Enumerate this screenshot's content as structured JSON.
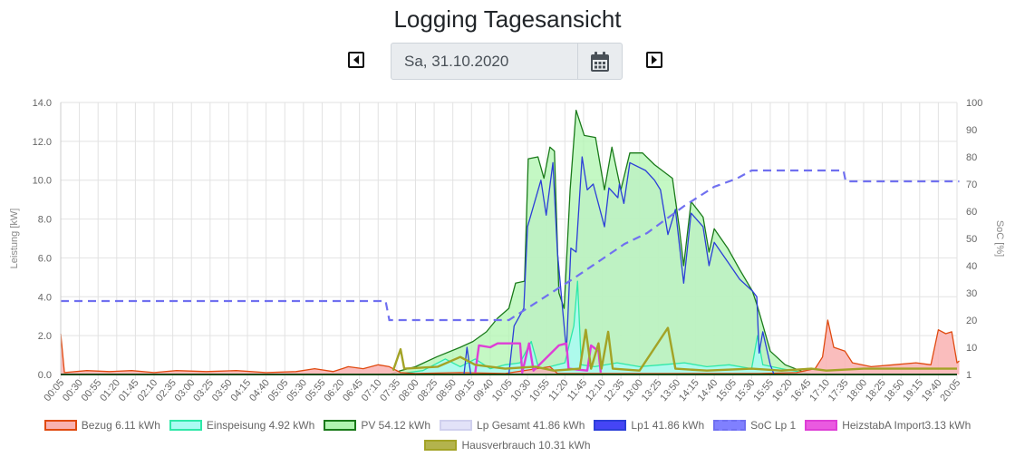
{
  "header": {
    "title": "Logging Tagesansicht",
    "date": "Sa, 31.10.2020",
    "prev_icon": "caret-left-icon",
    "next_icon": "caret-right-icon",
    "calendar_icon": "calendar-icon"
  },
  "chart_data": {
    "type": "line",
    "y_left": {
      "label": "Leistung [kW]",
      "min": 0,
      "max": 14,
      "ticks": [
        "14.0",
        "12.0",
        "10.0",
        "8.0",
        "6.0",
        "4.0",
        "2.0",
        "0.0"
      ]
    },
    "y_right": {
      "label": "SoC [%]",
      "min": 0,
      "max": 100,
      "ticks": [
        "100",
        "90",
        "80",
        "70",
        "60",
        "50",
        "40",
        "30",
        "20",
        "10",
        "1"
      ]
    },
    "x_ticks": [
      "00:05",
      "00:30",
      "00:55",
      "01:20",
      "01:45",
      "02:10",
      "02:35",
      "03:00",
      "03:25",
      "03:50",
      "04:15",
      "04:40",
      "05:05",
      "05:30",
      "05:55",
      "06:20",
      "06:45",
      "07:10",
      "07:35",
      "08:00",
      "08:25",
      "08:50",
      "09:15",
      "09:40",
      "10:05",
      "10:30",
      "10:55",
      "11:20",
      "11:45",
      "12:10",
      "12:35",
      "13:00",
      "13:25",
      "13:50",
      "14:15",
      "14:40",
      "15:05",
      "15:30",
      "15:55",
      "16:20",
      "16:45",
      "17:10",
      "17:35",
      "18:00",
      "18:25",
      "18:50",
      "19:15",
      "19:40",
      "20:05"
    ],
    "grid": true,
    "legend_position": "bottom",
    "series": [
      {
        "name": "Bezug",
        "legend": "Bezug 6.11 kWh",
        "fill": "#f9b1b1",
        "stroke": "#e04a10",
        "axis": "left",
        "kind": "area",
        "points": [
          [
            "00:05",
            2.1
          ],
          [
            "00:10",
            0.1
          ],
          [
            "00:40",
            0.2
          ],
          [
            "01:10",
            0.15
          ],
          [
            "01:40",
            0.2
          ],
          [
            "02:10",
            0.1
          ],
          [
            "02:40",
            0.2
          ],
          [
            "03:20",
            0.15
          ],
          [
            "04:00",
            0.2
          ],
          [
            "04:40",
            0.1
          ],
          [
            "05:20",
            0.15
          ],
          [
            "05:45",
            0.3
          ],
          [
            "06:10",
            0.15
          ],
          [
            "06:30",
            0.4
          ],
          [
            "06:50",
            0.3
          ],
          [
            "07:10",
            0.5
          ],
          [
            "07:25",
            0.4
          ],
          [
            "07:40",
            0.1
          ],
          [
            "08:00",
            0.05
          ],
          [
            "09:00",
            0.1
          ],
          [
            "10:00",
            0.05
          ],
          [
            "11:00",
            0.4
          ],
          [
            "11:10",
            0.05
          ],
          [
            "15:40",
            0.05
          ],
          [
            "16:30",
            0.1
          ],
          [
            "16:55",
            0.3
          ],
          [
            "17:05",
            0.9
          ],
          [
            "17:12",
            2.8
          ],
          [
            "17:20",
            1.4
          ],
          [
            "17:35",
            1.2
          ],
          [
            "17:45",
            0.6
          ],
          [
            "18:10",
            0.4
          ],
          [
            "18:40",
            0.5
          ],
          [
            "19:10",
            0.6
          ],
          [
            "19:30",
            0.5
          ],
          [
            "19:40",
            2.3
          ],
          [
            "19:50",
            2.1
          ],
          [
            "19:58",
            2.2
          ],
          [
            "20:05",
            0.6
          ],
          [
            "20:08",
            0.7
          ]
        ]
      },
      {
        "name": "Einspeisung",
        "legend": "Einspeisung 4.92 kWh",
        "fill": "#aafbf3",
        "stroke": "#2ee8a8",
        "axis": "left",
        "kind": "area",
        "points": [
          [
            "07:30",
            0
          ],
          [
            "08:10",
            0.2
          ],
          [
            "08:40",
            0.8
          ],
          [
            "09:00",
            0.4
          ],
          [
            "09:20",
            0.8
          ],
          [
            "09:40",
            0.3
          ],
          [
            "10:00",
            0.5
          ],
          [
            "10:20",
            0.6
          ],
          [
            "10:35",
            1.7
          ],
          [
            "10:45",
            0.3
          ],
          [
            "11:00",
            0.4
          ],
          [
            "11:20",
            0.6
          ],
          [
            "11:32",
            2.5
          ],
          [
            "11:37",
            4.8
          ],
          [
            "11:42",
            0.5
          ],
          [
            "12:00",
            0.4
          ],
          [
            "12:30",
            0.6
          ],
          [
            "13:00",
            0.4
          ],
          [
            "13:30",
            0.5
          ],
          [
            "14:00",
            0.6
          ],
          [
            "14:30",
            0.4
          ],
          [
            "15:00",
            0.5
          ],
          [
            "15:30",
            0.3
          ],
          [
            "15:38",
            2.0
          ],
          [
            "15:45",
            0.5
          ],
          [
            "16:10",
            0.3
          ],
          [
            "16:40",
            0.1
          ],
          [
            "16:50",
            0
          ]
        ]
      },
      {
        "name": "PV",
        "legend": "PV 54.12 kWh",
        "fill": "#b0f5b0",
        "stroke": "#1a7a1a",
        "axis": "left",
        "kind": "area",
        "points": [
          [
            "07:25",
            0
          ],
          [
            "07:40",
            0.2
          ],
          [
            "08:00",
            0.4
          ],
          [
            "08:28",
            0.9
          ],
          [
            "09:00",
            1.4
          ],
          [
            "09:17",
            1.7
          ],
          [
            "09:35",
            2.2
          ],
          [
            "09:50",
            2.9
          ],
          [
            "10:05",
            3.4
          ],
          [
            "10:14",
            4.7
          ],
          [
            "10:26",
            4.8
          ],
          [
            "10:31",
            11.1
          ],
          [
            "10:44",
            11.2
          ],
          [
            "10:52",
            10.1
          ],
          [
            "11:00",
            11.7
          ],
          [
            "11:06",
            11.5
          ],
          [
            "11:12",
            4.2
          ],
          [
            "11:19",
            3.4
          ],
          [
            "11:27",
            9.5
          ],
          [
            "11:35",
            13.6
          ],
          [
            "11:46",
            12.3
          ],
          [
            "12:01",
            12.2
          ],
          [
            "12:13",
            9.5
          ],
          [
            "12:23",
            11.7
          ],
          [
            "12:35",
            9.5
          ],
          [
            "12:47",
            11.4
          ],
          [
            "13:04",
            11.4
          ],
          [
            "13:20",
            10.8
          ],
          [
            "13:44",
            10.1
          ],
          [
            "13:53",
            7.6
          ],
          [
            "13:59",
            5.6
          ],
          [
            "14:09",
            8.9
          ],
          [
            "14:25",
            8.1
          ],
          [
            "14:33",
            6.3
          ],
          [
            "14:40",
            7.5
          ],
          [
            "14:58",
            6.5
          ],
          [
            "15:14",
            5.4
          ],
          [
            "15:31",
            4.3
          ],
          [
            "15:38",
            3.5
          ],
          [
            "15:55",
            1.2
          ],
          [
            "16:15",
            0.5
          ],
          [
            "16:35",
            0.2
          ],
          [
            "16:45",
            0
          ]
        ]
      },
      {
        "name": "Lp Gesamt",
        "legend": "Lp Gesamt 41.86 kWh",
        "fill": "#e2e2f8",
        "stroke": "#d0d0ee",
        "axis": "left",
        "kind": "area",
        "same_as": "Lp1"
      },
      {
        "name": "Lp1",
        "legend": "Lp1 41.86 kWh",
        "fill": "#4545f5",
        "stroke": "#2c3fd8",
        "axis": "left",
        "kind": "line",
        "points": [
          [
            "09:05",
            0
          ],
          [
            "09:09",
            1.4
          ],
          [
            "09:14",
            0
          ],
          [
            "10:05",
            0
          ],
          [
            "10:12",
            2.5
          ],
          [
            "10:25",
            3.4
          ],
          [
            "10:30",
            7.6
          ],
          [
            "10:48",
            10.0
          ],
          [
            "10:55",
            8.2
          ],
          [
            "11:04",
            10.9
          ],
          [
            "11:10",
            6.3
          ],
          [
            "11:22",
            1.2
          ],
          [
            "11:28",
            6.5
          ],
          [
            "11:35",
            6.3
          ],
          [
            "11:43",
            11.2
          ],
          [
            "11:50",
            9.5
          ],
          [
            "11:58",
            9.8
          ],
          [
            "12:13",
            7.6
          ],
          [
            "12:19",
            9.6
          ],
          [
            "12:31",
            9.1
          ],
          [
            "12:33",
            9.8
          ],
          [
            "12:39",
            8.8
          ],
          [
            "12:47",
            10.9
          ],
          [
            "13:08",
            10.5
          ],
          [
            "13:20",
            10.0
          ],
          [
            "13:28",
            9.5
          ],
          [
            "13:38",
            7.2
          ],
          [
            "13:48",
            8.5
          ],
          [
            "13:59",
            4.7
          ],
          [
            "14:09",
            8.3
          ],
          [
            "14:25",
            7.6
          ],
          [
            "14:33",
            5.6
          ],
          [
            "14:40",
            6.8
          ],
          [
            "14:58",
            5.8
          ],
          [
            "15:14",
            4.9
          ],
          [
            "15:31",
            4.3
          ],
          [
            "15:37",
            4.0
          ],
          [
            "15:40",
            1.1
          ],
          [
            "15:45",
            2.2
          ],
          [
            "15:55",
            0.5
          ],
          [
            "16:00",
            0
          ]
        ]
      },
      {
        "name": "SoC Lp 1",
        "legend": "SoC Lp 1",
        "fill": "#7b7bff",
        "stroke": "#7070f0",
        "axis": "right",
        "kind": "dashed",
        "points": [
          [
            "00:05",
            27
          ],
          [
            "07:20",
            27
          ],
          [
            "07:25",
            20
          ],
          [
            "10:05",
            20
          ],
          [
            "11:30",
            35
          ],
          [
            "12:40",
            48
          ],
          [
            "13:10",
            52
          ],
          [
            "14:00",
            62
          ],
          [
            "14:40",
            69
          ],
          [
            "15:10",
            72
          ],
          [
            "15:30",
            75
          ],
          [
            "17:33",
            75
          ],
          [
            "17:36",
            71
          ],
          [
            "20:08",
            71
          ]
        ]
      },
      {
        "name": "HeizstabA Import",
        "legend": "HeizstabA Import3.13 kWh",
        "fill": "#ea5ae0",
        "stroke": "#de3ed6",
        "axis": "left",
        "kind": "line",
        "points": [
          [
            "09:20",
            0.1
          ],
          [
            "09:25",
            1.5
          ],
          [
            "09:40",
            1.4
          ],
          [
            "09:50",
            1.6
          ],
          [
            "10:20",
            1.6
          ],
          [
            "10:23",
            0.1
          ],
          [
            "10:32",
            1.6
          ],
          [
            "10:38",
            0.2
          ],
          [
            "11:12",
            1.5
          ],
          [
            "11:22",
            1.6
          ],
          [
            "11:25",
            0.3
          ],
          [
            "11:50",
            0.2
          ],
          [
            "11:55",
            1.5
          ],
          [
            "12:05",
            1.2
          ],
          [
            "12:08",
            0.1
          ]
        ]
      },
      {
        "name": "Hausverbrauch",
        "legend": "Hausverbrauch 10.31 kWh",
        "fill": "#b3b34d",
        "stroke": "#a3a326",
        "axis": "left",
        "kind": "line",
        "points": [
          [
            "07:30",
            0.2
          ],
          [
            "07:40",
            1.3
          ],
          [
            "07:45",
            0.3
          ],
          [
            "08:30",
            0.4
          ],
          [
            "09:00",
            0.9
          ],
          [
            "09:20",
            0.5
          ],
          [
            "10:00",
            0.3
          ],
          [
            "10:40",
            0.4
          ],
          [
            "11:05",
            0.2
          ],
          [
            "11:40",
            0.3
          ],
          [
            "11:48",
            2.3
          ],
          [
            "11:55",
            0.3
          ],
          [
            "12:05",
            1.6
          ],
          [
            "12:09",
            0.3
          ],
          [
            "12:18",
            2.2
          ],
          [
            "12:24",
            0.3
          ],
          [
            "13:00",
            0.2
          ],
          [
            "13:38",
            2.4
          ],
          [
            "13:48",
            0.3
          ],
          [
            "14:30",
            0.2
          ],
          [
            "15:30",
            0.3
          ],
          [
            "16:10",
            0.2
          ],
          [
            "16:50",
            0.3
          ],
          [
            "17:10",
            0.2
          ],
          [
            "18:00",
            0.3
          ],
          [
            "19:00",
            0.3
          ],
          [
            "20:05",
            0.3
          ]
        ]
      }
    ]
  }
}
